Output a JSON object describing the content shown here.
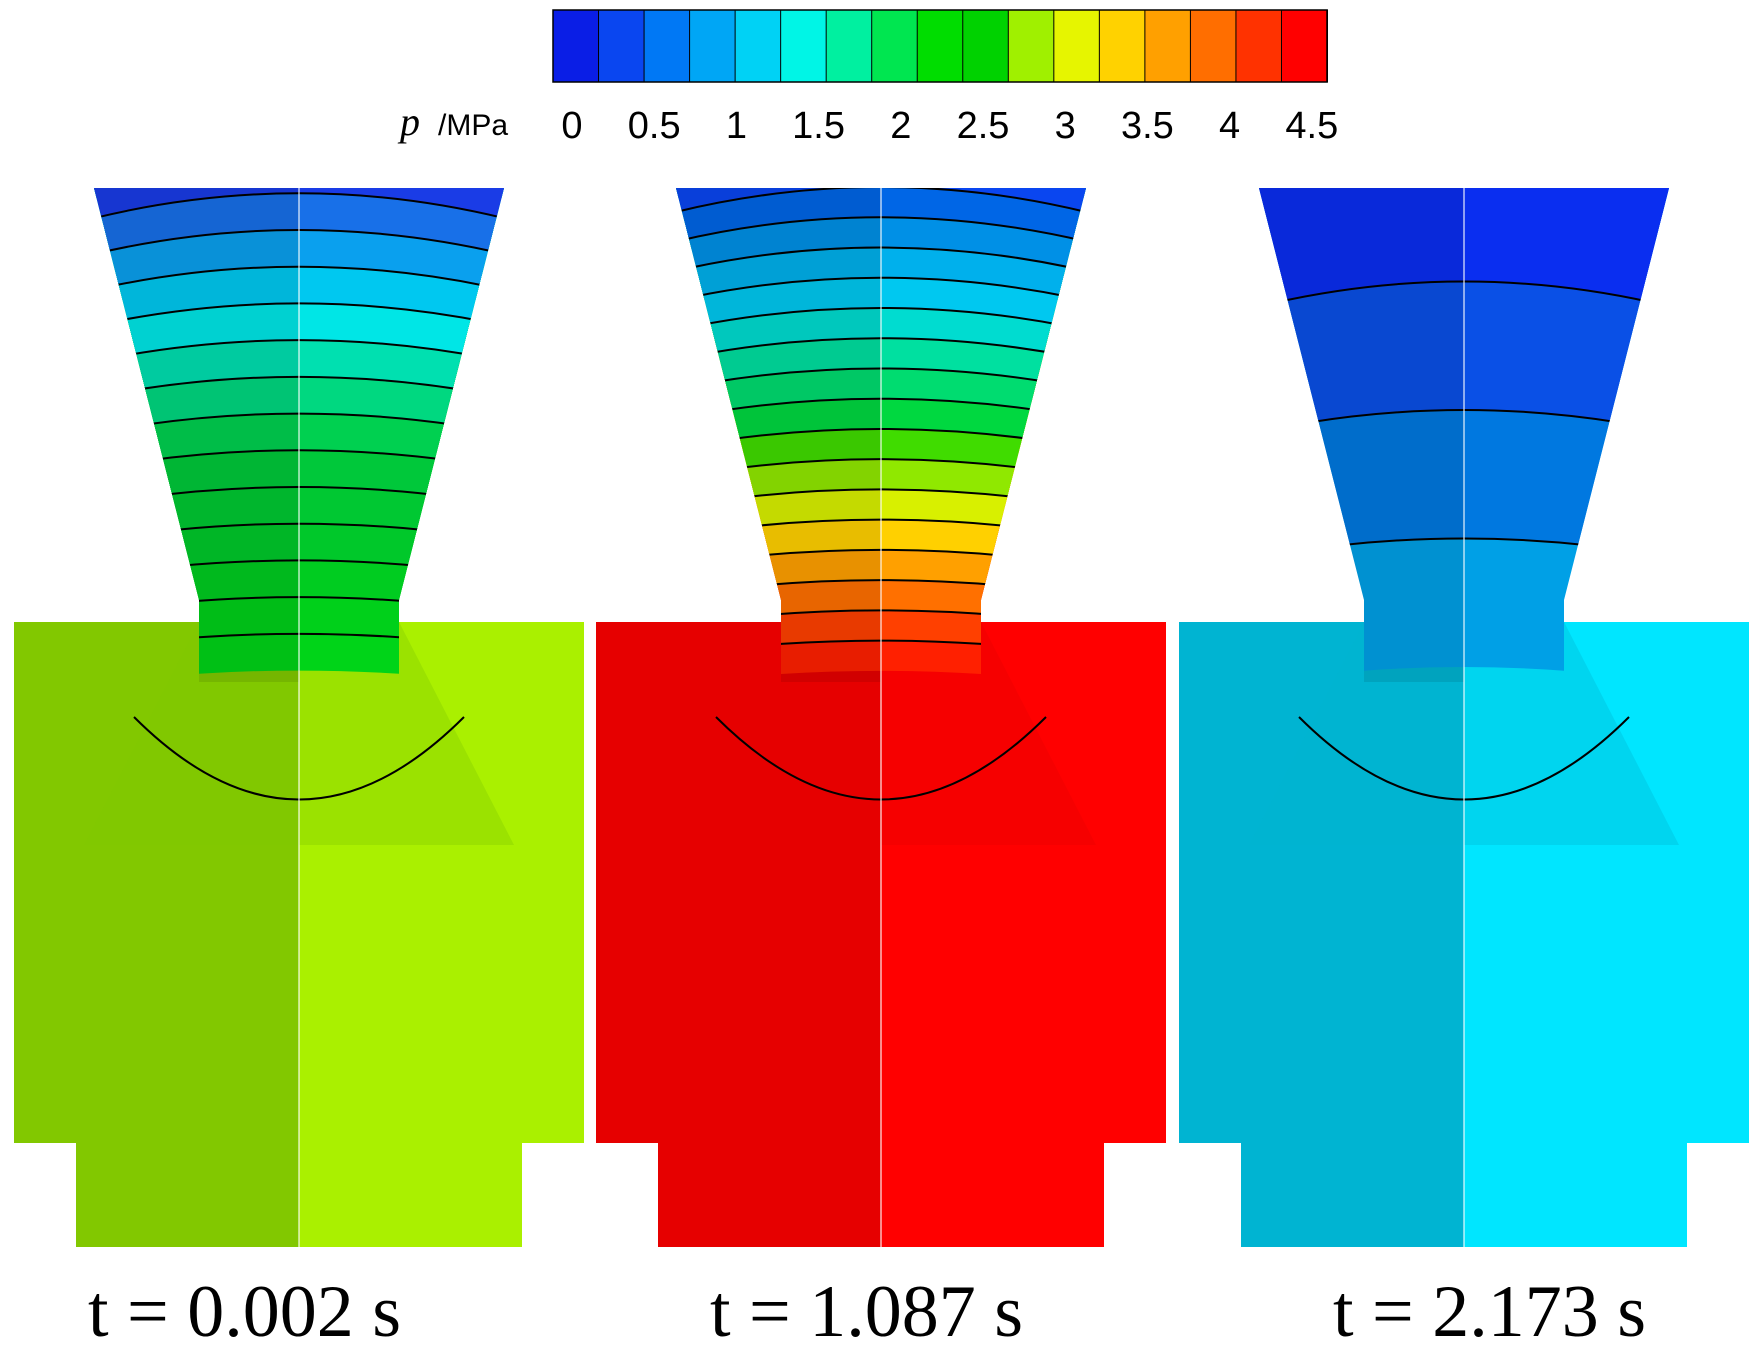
{
  "colorbar": {
    "variable": "p",
    "unit": "/MPa",
    "tick_labels": [
      "0",
      "0.5",
      "1",
      "1.5",
      "2",
      "2.5",
      "3",
      "3.5",
      "4",
      "4.5"
    ],
    "colors": [
      "#0a1ee6",
      "#0a46f0",
      "#0078f5",
      "#00a6f5",
      "#00d2f5",
      "#00f5e6",
      "#00f0a0",
      "#00e650",
      "#00dd00",
      "#00d200",
      "#a0f000",
      "#e6f500",
      "#ffd200",
      "#ffa000",
      "#ff6e00",
      "#ff3200",
      "#ff0000"
    ]
  },
  "panels": [
    {
      "time_label": "t = 0.002 s",
      "chamber_color": "#aaf000",
      "chamber_color_left": "#82c800",
      "throat_colors": [
        "#1a3ce6",
        "#1870e8",
        "#0aa0ee",
        "#00c8f0",
        "#00e6e6",
        "#00e0b0",
        "#00d880",
        "#00d050",
        "#00c83a",
        "#00c832",
        "#00c82a",
        "#00cc20",
        "#00d01a",
        "#00d418"
      ],
      "contour_count": 14
    },
    {
      "time_label": "t = 1.087 s",
      "chamber_color": "#ff0000",
      "chamber_color_left": "#e60000",
      "throat_colors": [
        "#0a46f0",
        "#0066e6",
        "#0090e6",
        "#00b0ec",
        "#00c8f0",
        "#00dcd0",
        "#00e0a0",
        "#00dc70",
        "#00d840",
        "#40dc00",
        "#90e800",
        "#d8f000",
        "#ffd000",
        "#ffa000",
        "#ff7000",
        "#ff4000",
        "#ff2000"
      ],
      "contour_count": 20
    },
    {
      "time_label": "t = 2.173 s",
      "chamber_color": "#00e6ff",
      "chamber_color_left": "#00b4d2",
      "throat_colors": [
        "#0a2ef0",
        "#0a50e6",
        "#0078e0",
        "#00a0e6"
      ],
      "contour_count": 3
    }
  ]
}
